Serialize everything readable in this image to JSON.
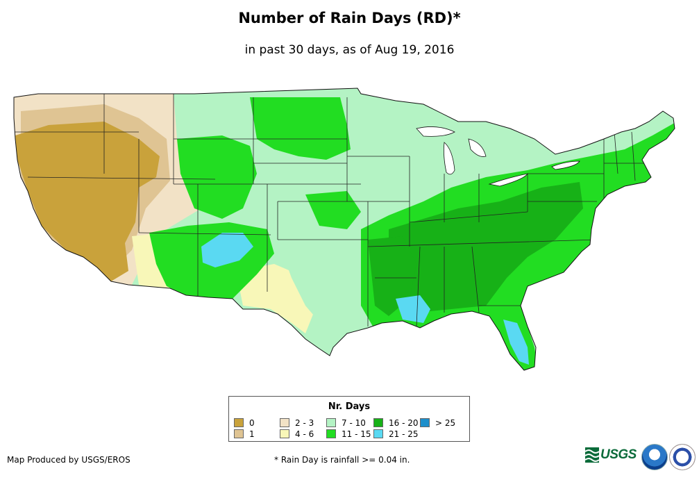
{
  "title": "Number of Rain Days (RD)*",
  "subtitle": "in past 30 days, as of Aug 19, 2016",
  "legend": {
    "title": "Nr. Days",
    "items": [
      {
        "label": "0",
        "color": "#c9a23b"
      },
      {
        "label": "1",
        "color": "#dfc493"
      },
      {
        "label": "2 - 3",
        "color": "#f2e2c6"
      },
      {
        "label": "4 - 6",
        "color": "#f8f7b8"
      },
      {
        "label": "7 - 10",
        "color": "#b4f3c4"
      },
      {
        "label": "11 - 15",
        "color": "#22dd22"
      },
      {
        "label": "16 - 20",
        "color": "#17b117"
      },
      {
        "label": "21 - 25",
        "color": "#5ad9f2"
      },
      {
        "label": "> 25",
        "color": "#1d8fcb"
      }
    ]
  },
  "credit": "Map Produced by USGS/EROS",
  "footnote": "* Rain Day is rainfall >= 0.04 in.",
  "logos": {
    "usgs": "USGS",
    "noaa": "noaa",
    "nws": "National Weather Service"
  },
  "icons": {
    "usgs": "usgs-wave-icon",
    "noaa": "noaa-emblem-icon",
    "nws": "nws-emblem-icon"
  }
}
